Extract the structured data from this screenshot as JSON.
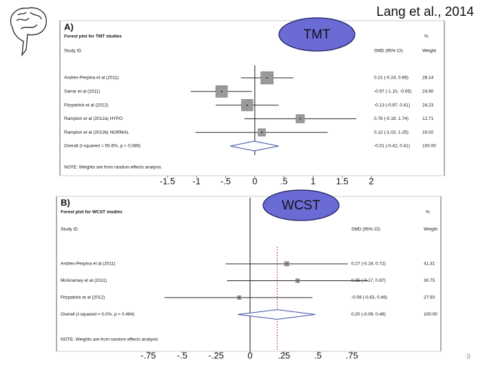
{
  "header": "Lang et al., 2014",
  "page_number": 9,
  "chart_data": [
    {
      "type": "forest",
      "panel_label": "A)",
      "title": "Forest plot for TMT studies",
      "badge": "TMT",
      "column_headers": {
        "study": "Study ID",
        "effect": "SMD (95% CI)",
        "percent": "%",
        "weight": "Weight"
      },
      "categories": [
        "Andres-Perpina et al (2011)",
        "Sarrar et al (2011)",
        "Fitzpatrick et al (2012)",
        "Rampton et al (2012a) HYPO",
        "Rampton et al (2012b) NORMAL"
      ],
      "estimate": {
        "values": [
          0.21,
          -0.57,
          -0.13,
          0.78,
          0.12
        ],
        "value_labels": [
          "0.21 (-0.24, 0.66)",
          "-0.57 (-1.10, -0.05)",
          "-0.13 (-0.67, 0.41)",
          "0.78 (-0.18, 1.74)",
          "0.12 (-1.02, 1.25)"
        ]
      },
      "lower": [
        -0.24,
        -1.1,
        -0.67,
        -0.18,
        -1.02
      ],
      "upper": [
        0.66,
        -0.05,
        0.41,
        1.74,
        1.25
      ],
      "weight": {
        "values": [
          28.14,
          24.9,
          24.23,
          12.71,
          10.02
        ],
        "value_labels": [
          "28.14",
          "24.90",
          "24.23",
          "12.71",
          "10.02"
        ]
      },
      "overall": {
        "label": "Overall (I-squared = 50.6%, p = 0.089)",
        "value": -0.01,
        "lower": -0.42,
        "upper": 0.41,
        "value_label": "-0.01 (-0.42, 0.41)",
        "weight": 100,
        "weight_label": "100.00"
      },
      "note": "NOTE: Weights are from random effects analysis",
      "reference_line": false,
      "xlim": [
        -1.65,
        2.1
      ],
      "xticks": [
        -1.5,
        -1,
        {
          "value": -0.5,
          "label": "-.5"
        },
        0,
        {
          "value": 0.5,
          "label": ".5"
        },
        1,
        1.5,
        2
      ]
    },
    {
      "type": "forest",
      "panel_label": "B)",
      "title": "Forest plot for WCST studies",
      "badge": "WCST",
      "column_headers": {
        "study": "Study ID",
        "effect": "SMD (95% CI)",
        "percent": "%",
        "weight": "Weight"
      },
      "categories": [
        "Andres-Perpina et al (2011)",
        "McAnarney et al (2011)",
        "Fitzpatrick et al (2012)"
      ],
      "estimate": {
        "values": [
          0.27,
          0.35,
          -0.08
        ],
        "value_labels": [
          "0.27 (-0.18, 0.72)",
          "0.35 (-0.17, 0.87)",
          "-0.08 (-0.63, 0.46)"
        ]
      },
      "lower": [
        -0.18,
        -0.17,
        -0.63
      ],
      "upper": [
        0.72,
        0.87,
        0.46
      ],
      "weight": {
        "values": [
          41.31,
          30.75,
          27.93
        ],
        "value_labels": [
          "41.31",
          "30.75",
          "27.93"
        ]
      },
      "overall": {
        "label": "Overall (I-squared = 0.0%, p = 0.484)",
        "value": 0.2,
        "lower": -0.09,
        "upper": 0.48,
        "value_label": "0.20 (-0.09, 0.48)",
        "weight": 100,
        "weight_label": "100.00"
      },
      "note": "NOTE: Weights are from random effects analysis",
      "reference_line": true,
      "xlim": [
        -0.85,
        0.85
      ],
      "xticks": [
        {
          "value": -0.75,
          "label": "-.75"
        },
        {
          "value": -0.5,
          "label": "-.5"
        },
        {
          "value": -0.25,
          "label": "-.25"
        },
        0,
        {
          "value": 0.25,
          "label": ".25"
        },
        {
          "value": 0.5,
          "label": ".5"
        },
        {
          "value": 0.75,
          "label": ".75"
        }
      ]
    }
  ]
}
